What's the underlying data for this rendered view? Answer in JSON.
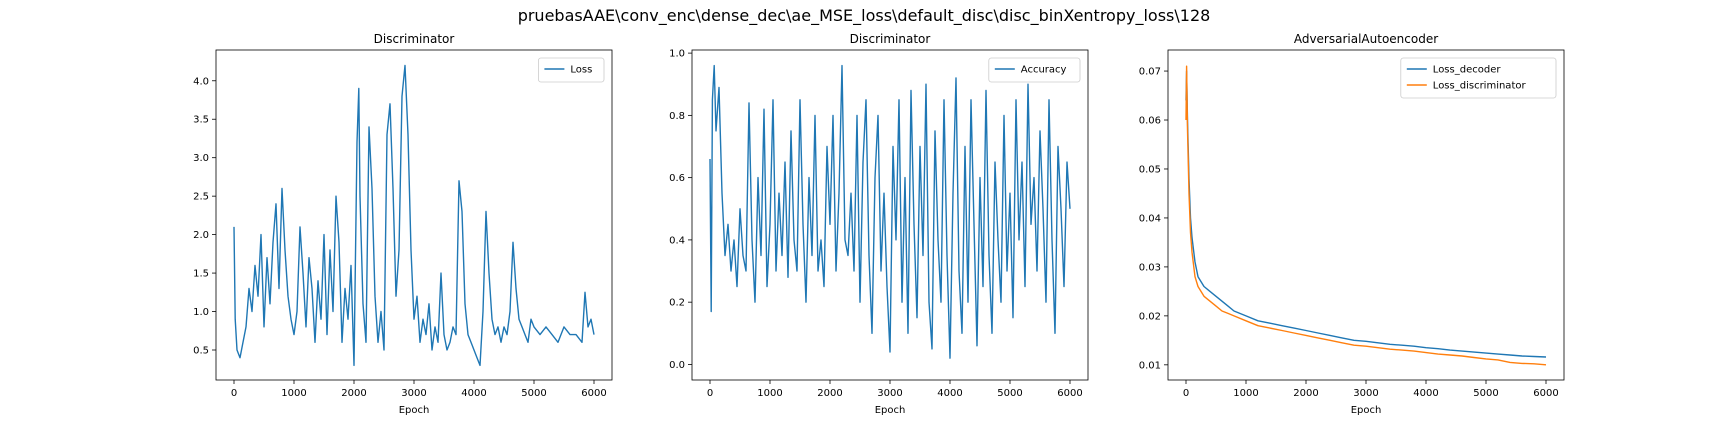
{
  "figure_title": "pruebasAAE\\conv_enc\\dense_dec\\ae_MSE_loss\\default_disc\\disc_binXentropy_loss\\128",
  "chart_data": [
    {
      "type": "line",
      "title": "Discriminator",
      "xlabel": "Epoch",
      "ylabel": "",
      "xlim": [
        -300,
        6300
      ],
      "ylim": [
        0.11,
        4.4
      ],
      "xticks": [
        0,
        1000,
        2000,
        3000,
        4000,
        5000,
        6000
      ],
      "yticks": [
        0.5,
        1.0,
        1.5,
        2.0,
        2.5,
        3.0,
        3.5,
        4.0
      ],
      "ytick_labels": [
        "0.5",
        "1.0",
        "1.5",
        "2.0",
        "2.5",
        "3.0",
        "3.5",
        "4.0"
      ],
      "legend": "top-right",
      "grid": false,
      "series": [
        {
          "name": "Loss",
          "color": "#1f77b4",
          "x": [
            0,
            20,
            50,
            100,
            150,
            200,
            250,
            300,
            350,
            400,
            450,
            500,
            550,
            600,
            650,
            700,
            750,
            800,
            850,
            900,
            950,
            1000,
            1050,
            1100,
            1150,
            1200,
            1250,
            1300,
            1350,
            1400,
            1450,
            1500,
            1550,
            1600,
            1650,
            1700,
            1750,
            1800,
            1850,
            1900,
            1950,
            2000,
            2050,
            2080,
            2100,
            2150,
            2200,
            2250,
            2300,
            2350,
            2400,
            2450,
            2500,
            2550,
            2600,
            2650,
            2700,
            2750,
            2800,
            2850,
            2900,
            2950,
            3000,
            3050,
            3100,
            3150,
            3200,
            3250,
            3300,
            3350,
            3400,
            3450,
            3500,
            3550,
            3600,
            3650,
            3700,
            3750,
            3800,
            3850,
            3900,
            3950,
            4000,
            4050,
            4100,
            4150,
            4200,
            4250,
            4300,
            4350,
            4400,
            4450,
            4500,
            4550,
            4600,
            4650,
            4700,
            4750,
            4800,
            4850,
            4900,
            4950,
            5000,
            5100,
            5200,
            5300,
            5400,
            5500,
            5600,
            5700,
            5800,
            5850,
            5900,
            5950,
            6000
          ],
          "values": [
            2.1,
            0.9,
            0.5,
            0.4,
            0.6,
            0.8,
            1.3,
            1.0,
            1.6,
            1.2,
            2.0,
            0.8,
            1.7,
            1.1,
            1.9,
            2.4,
            1.3,
            2.6,
            1.8,
            1.2,
            0.9,
            0.7,
            1.0,
            2.1,
            1.5,
            0.8,
            1.7,
            1.3,
            0.6,
            1.4,
            0.9,
            2.0,
            0.7,
            1.8,
            1.0,
            2.5,
            1.9,
            0.6,
            1.3,
            0.9,
            1.6,
            0.3,
            3.2,
            3.9,
            2.5,
            1.1,
            0.6,
            3.4,
            2.6,
            1.2,
            0.6,
            1.0,
            0.5,
            3.3,
            3.7,
            2.6,
            1.2,
            1.8,
            3.8,
            4.2,
            3.3,
            1.8,
            0.9,
            1.2,
            0.6,
            0.9,
            0.7,
            1.1,
            0.5,
            0.8,
            0.6,
            1.5,
            0.7,
            0.5,
            0.6,
            0.8,
            0.7,
            2.7,
            2.3,
            1.1,
            0.7,
            0.6,
            0.5,
            0.4,
            0.3,
            1.0,
            2.3,
            1.5,
            0.9,
            0.7,
            0.8,
            0.6,
            0.8,
            0.7,
            1.0,
            1.9,
            1.3,
            0.9,
            0.8,
            0.7,
            0.6,
            0.9,
            0.8,
            0.7,
            0.8,
            0.7,
            0.6,
            0.8,
            0.7,
            0.7,
            0.6,
            1.25,
            0.8,
            0.9,
            0.7
          ]
        }
      ]
    },
    {
      "type": "line",
      "title": "Discriminator",
      "xlabel": "Epoch",
      "ylabel": "",
      "xlim": [
        -300,
        6300
      ],
      "ylim": [
        -0.05,
        1.01
      ],
      "xticks": [
        0,
        1000,
        2000,
        3000,
        4000,
        5000,
        6000
      ],
      "yticks": [
        0.0,
        0.2,
        0.4,
        0.6,
        0.8,
        1.0
      ],
      "ytick_labels": [
        "0.0",
        "0.2",
        "0.4",
        "0.6",
        "0.8",
        "1.0"
      ],
      "legend": "top-right",
      "grid": false,
      "series": [
        {
          "name": "Accuracy",
          "color": "#1f77b4",
          "x": [
            0,
            20,
            40,
            70,
            100,
            150,
            200,
            250,
            300,
            350,
            400,
            450,
            500,
            550,
            600,
            650,
            700,
            750,
            800,
            850,
            900,
            950,
            1000,
            1050,
            1100,
            1150,
            1200,
            1250,
            1300,
            1350,
            1400,
            1450,
            1500,
            1550,
            1600,
            1650,
            1700,
            1750,
            1800,
            1850,
            1900,
            1950,
            2000,
            2050,
            2100,
            2150,
            2200,
            2250,
            2300,
            2350,
            2400,
            2450,
            2500,
            2550,
            2600,
            2650,
            2700,
            2750,
            2800,
            2850,
            2900,
            2950,
            3000,
            3050,
            3100,
            3150,
            3200,
            3250,
            3300,
            3350,
            3400,
            3450,
            3500,
            3550,
            3600,
            3650,
            3700,
            3750,
            3800,
            3850,
            3900,
            3950,
            4000,
            4050,
            4100,
            4150,
            4200,
            4250,
            4300,
            4350,
            4400,
            4450,
            4500,
            4550,
            4600,
            4650,
            4700,
            4750,
            4800,
            4850,
            4900,
            4950,
            5000,
            5050,
            5100,
            5150,
            5200,
            5250,
            5300,
            5350,
            5400,
            5450,
            5500,
            5550,
            5600,
            5650,
            5700,
            5750,
            5800,
            5850,
            5900,
            5950,
            6000
          ],
          "values": [
            0.66,
            0.17,
            0.85,
            0.96,
            0.75,
            0.89,
            0.55,
            0.35,
            0.45,
            0.3,
            0.4,
            0.25,
            0.5,
            0.35,
            0.3,
            0.84,
            0.4,
            0.2,
            0.6,
            0.35,
            0.82,
            0.25,
            0.45,
            0.85,
            0.3,
            0.55,
            0.35,
            0.65,
            0.28,
            0.75,
            0.4,
            0.3,
            0.85,
            0.45,
            0.2,
            0.6,
            0.35,
            0.8,
            0.3,
            0.4,
            0.25,
            0.7,
            0.45,
            0.8,
            0.3,
            0.55,
            0.96,
            0.4,
            0.35,
            0.55,
            0.3,
            0.8,
            0.2,
            0.65,
            0.85,
            0.35,
            0.1,
            0.6,
            0.8,
            0.3,
            0.55,
            0.25,
            0.04,
            0.7,
            0.4,
            0.85,
            0.2,
            0.6,
            0.1,
            0.88,
            0.45,
            0.15,
            0.7,
            0.35,
            0.9,
            0.2,
            0.05,
            0.75,
            0.4,
            0.2,
            0.85,
            0.35,
            0.02,
            0.55,
            0.92,
            0.3,
            0.1,
            0.7,
            0.2,
            0.85,
            0.45,
            0.06,
            0.6,
            0.25,
            0.88,
            0.35,
            0.1,
            0.65,
            0.4,
            0.2,
            0.8,
            0.3,
            0.55,
            0.15,
            0.85,
            0.4,
            0.65,
            0.25,
            0.9,
            0.45,
            0.6,
            0.3,
            0.75,
            0.5,
            0.2,
            0.85,
            0.4,
            0.1,
            0.7,
            0.5,
            0.25,
            0.65,
            0.5
          ]
        }
      ]
    },
    {
      "type": "line",
      "title": "AdversarialAutoencoder",
      "xlabel": "Epoch",
      "ylabel": "",
      "xlim": [
        -300,
        6300
      ],
      "ylim": [
        0.0069,
        0.0743
      ],
      "xticks": [
        0,
        1000,
        2000,
        3000,
        4000,
        5000,
        6000
      ],
      "yticks": [
        0.01,
        0.02,
        0.03,
        0.04,
        0.05,
        0.06,
        0.07
      ],
      "ytick_labels": [
        "0.01",
        "0.02",
        "0.03",
        "0.04",
        "0.05",
        "0.06",
        "0.07"
      ],
      "legend": "top-right",
      "grid": false,
      "series": [
        {
          "name": "Loss_decoder",
          "color": "#1f77b4",
          "x": [
            0,
            10,
            25,
            50,
            75,
            100,
            150,
            200,
            250,
            300,
            400,
            500,
            600,
            700,
            800,
            1000,
            1200,
            1400,
            1600,
            1800,
            2000,
            2200,
            2400,
            2600,
            2800,
            3000,
            3200,
            3400,
            3600,
            3800,
            4000,
            4200,
            4400,
            4600,
            4800,
            5000,
            5200,
            5400,
            5600,
            5800,
            6000
          ],
          "values": [
            0.064,
            0.07,
            0.06,
            0.048,
            0.04,
            0.036,
            0.031,
            0.028,
            0.027,
            0.026,
            0.025,
            0.024,
            0.023,
            0.022,
            0.021,
            0.02,
            0.019,
            0.0185,
            0.018,
            0.0175,
            0.017,
            0.0165,
            0.016,
            0.0155,
            0.015,
            0.0148,
            0.0145,
            0.0142,
            0.014,
            0.0138,
            0.0135,
            0.0133,
            0.013,
            0.0128,
            0.0126,
            0.0124,
            0.0122,
            0.012,
            0.0118,
            0.0117,
            0.0116
          ]
        },
        {
          "name": "Loss_discriminator",
          "color": "#ff7f0e",
          "x": [
            0,
            10,
            25,
            50,
            75,
            100,
            150,
            200,
            250,
            300,
            400,
            500,
            600,
            700,
            800,
            1000,
            1200,
            1400,
            1600,
            1800,
            2000,
            2200,
            2400,
            2600,
            2800,
            3000,
            3200,
            3400,
            3600,
            3800,
            4000,
            4200,
            4400,
            4600,
            4800,
            5000,
            5200,
            5400,
            5600,
            5800,
            6000
          ],
          "values": [
            0.06,
            0.071,
            0.058,
            0.045,
            0.037,
            0.033,
            0.028,
            0.026,
            0.025,
            0.024,
            0.023,
            0.022,
            0.021,
            0.0205,
            0.02,
            0.019,
            0.018,
            0.0175,
            0.017,
            0.0165,
            0.016,
            0.0155,
            0.015,
            0.0145,
            0.014,
            0.0138,
            0.0135,
            0.0132,
            0.013,
            0.0128,
            0.0125,
            0.0122,
            0.012,
            0.0118,
            0.0115,
            0.0112,
            0.011,
            0.0105,
            0.0103,
            0.0102,
            0.01
          ]
        }
      ]
    }
  ]
}
